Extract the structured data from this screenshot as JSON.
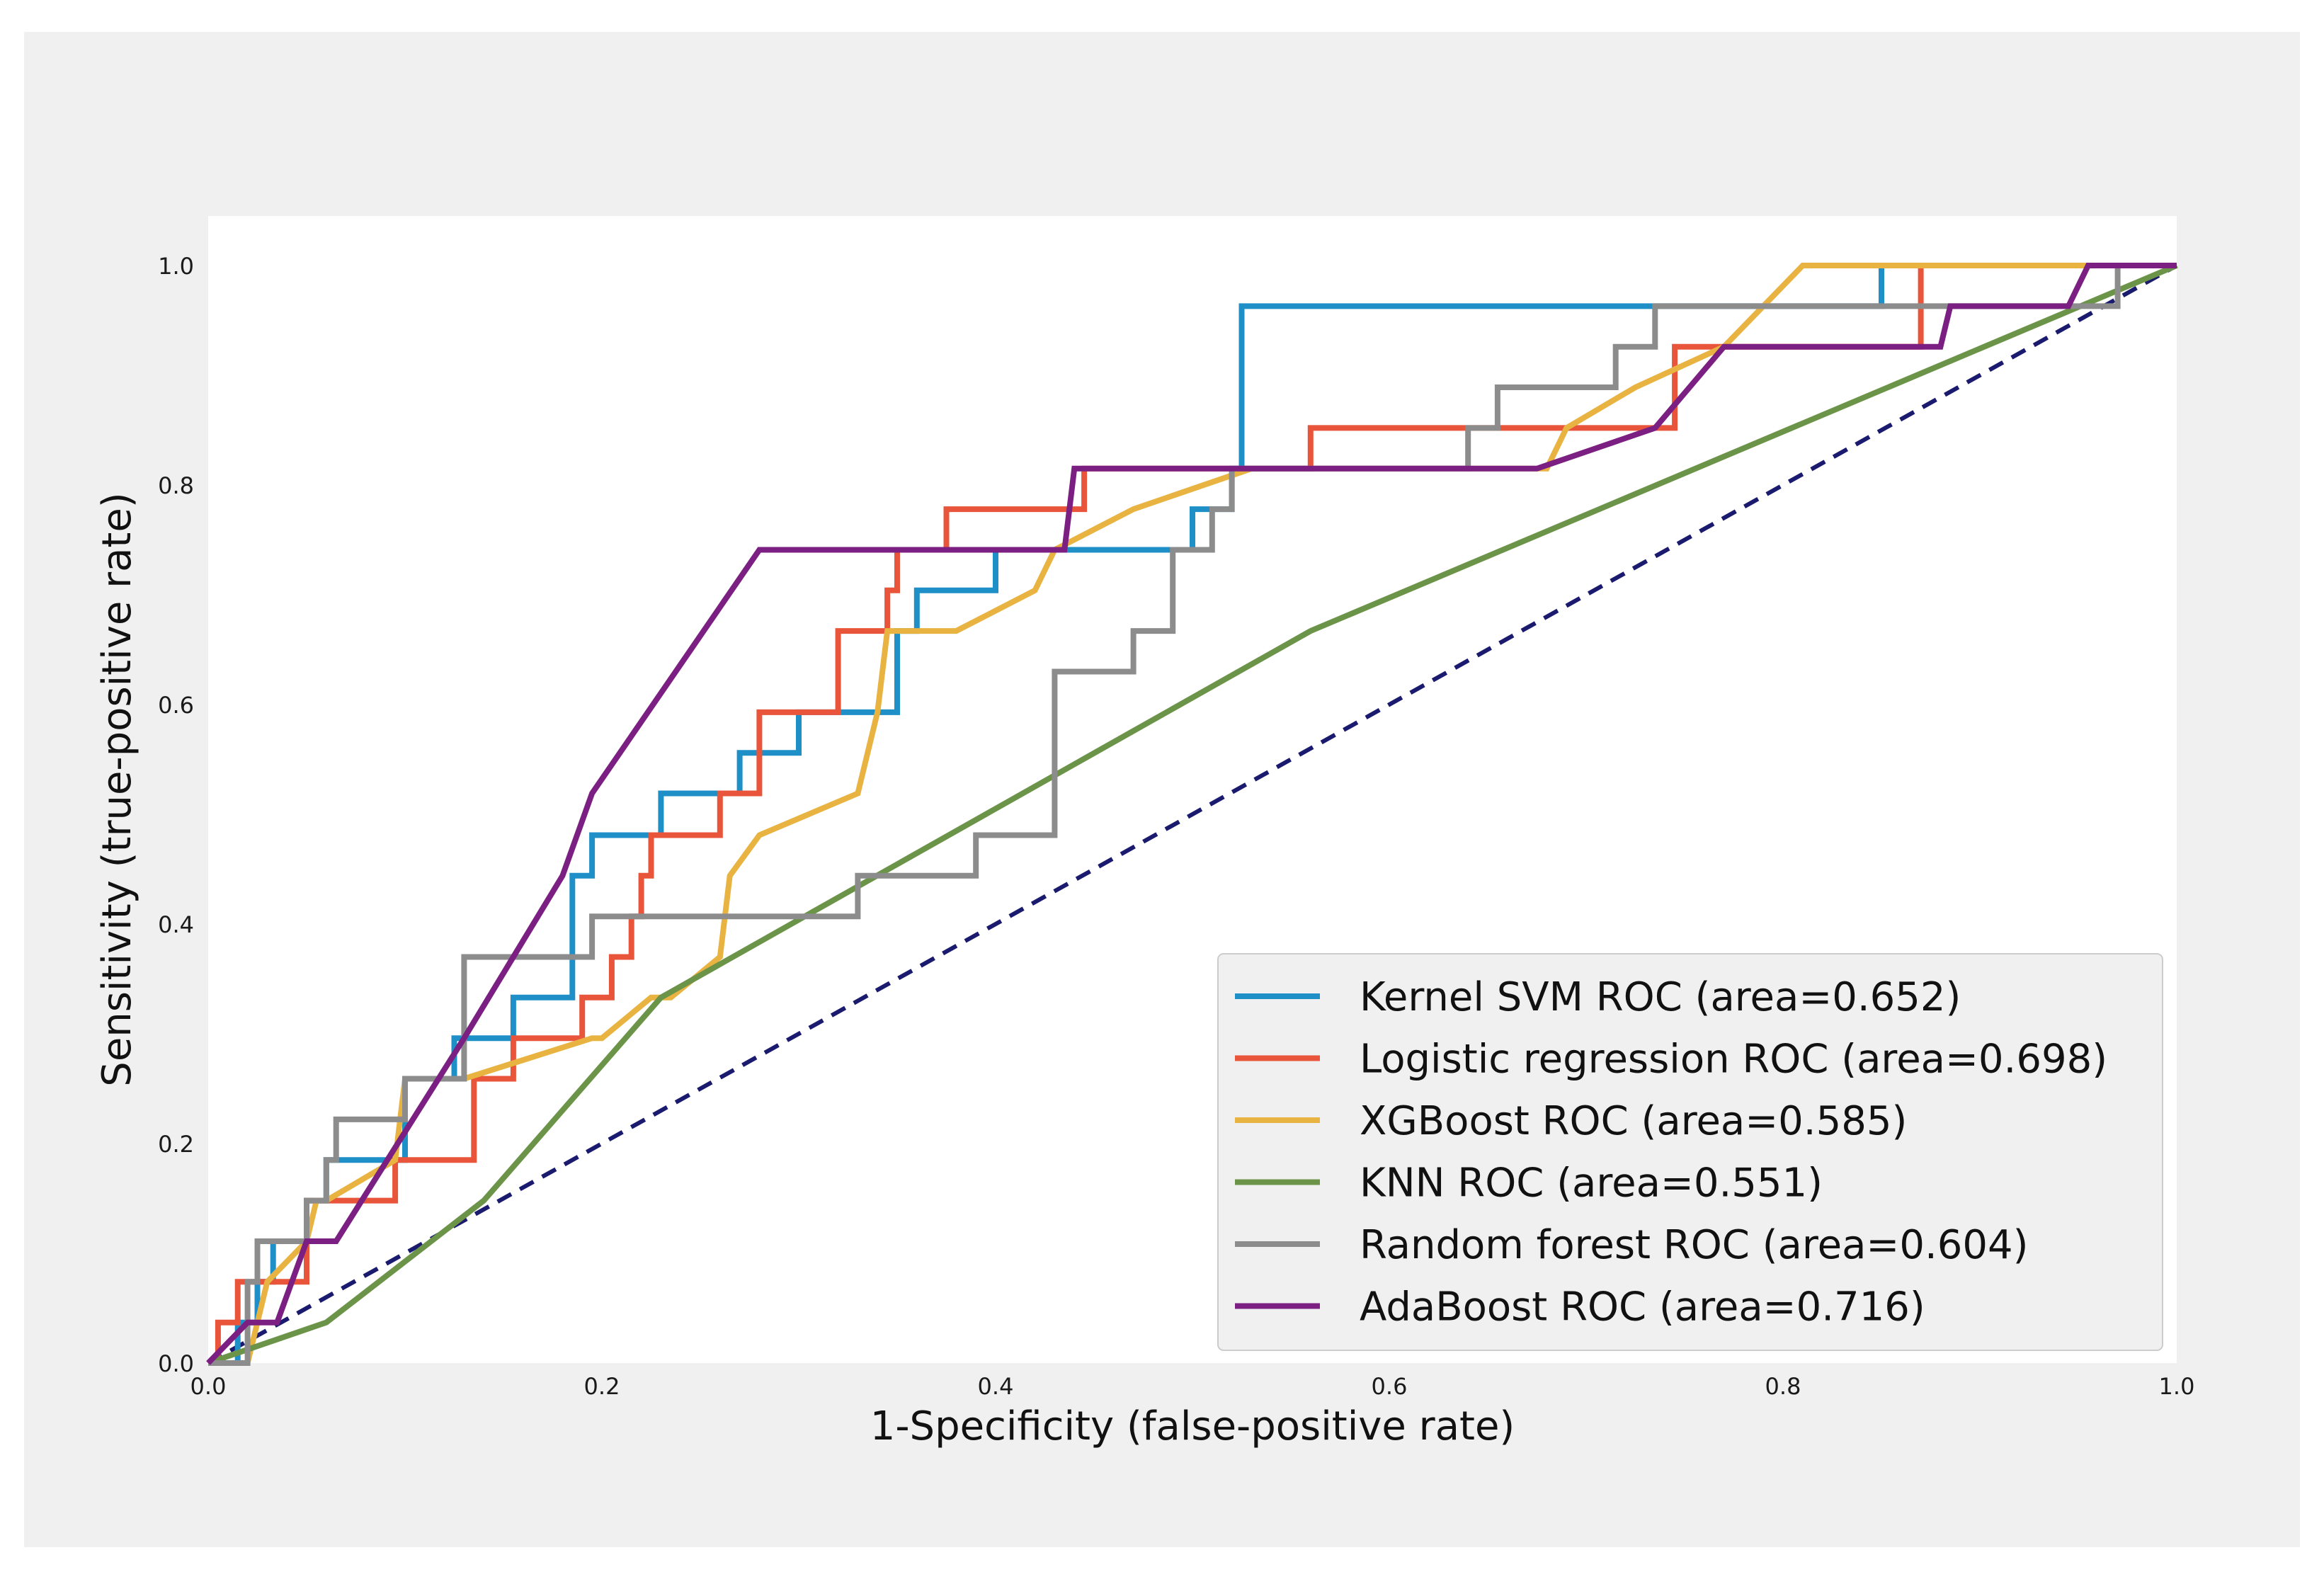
{
  "chart_data": {
    "type": "line",
    "title": "",
    "xlabel": "1-Specificity (false-positive rate)",
    "ylabel": "Sensitivity (true-positive rate)",
    "xlim": [
      0.0,
      1.0
    ],
    "ylim": [
      0.0,
      1.0
    ],
    "xticks": [
      0.0,
      0.2,
      0.4,
      0.6,
      0.8,
      1.0
    ],
    "yticks": [
      0.0,
      0.2,
      0.4,
      0.6,
      0.8,
      1.0
    ],
    "xtick_labels": [
      "0.0",
      "0.2",
      "0.4",
      "0.6",
      "0.8",
      "1.0"
    ],
    "ytick_labels": [
      "0.0",
      "0.2",
      "0.4",
      "0.6",
      "0.8",
      "1.0"
    ],
    "grid": false,
    "legend_position": "lower-right",
    "chance_line": {
      "name": "chance",
      "color": "#1a1a6e",
      "style": "dashed",
      "x": [
        0,
        1
      ],
      "y": [
        0,
        1
      ]
    },
    "series": [
      {
        "name": "Kernel SVM ROC (area=0.652)",
        "color": "#1f8fc8",
        "x": [
          0,
          0.015,
          0.015,
          0.025,
          0.025,
          0.033,
          0.033,
          0.05,
          0.05,
          0.06,
          0.06,
          0.1,
          0.1,
          0.125,
          0.125,
          0.155,
          0.155,
          0.185,
          0.185,
          0.195,
          0.195,
          0.23,
          0.23,
          0.27,
          0.27,
          0.3,
          0.3,
          0.35,
          0.35,
          0.36,
          0.36,
          0.4,
          0.4,
          0.5,
          0.5,
          0.52,
          0.52,
          0.525,
          0.525,
          0.85,
          0.85,
          1.0
        ],
        "y": [
          0,
          0,
          0.037,
          0.037,
          0.074,
          0.074,
          0.111,
          0.111,
          0.148,
          0.148,
          0.185,
          0.185,
          0.259,
          0.259,
          0.296,
          0.296,
          0.333,
          0.333,
          0.444,
          0.444,
          0.481,
          0.481,
          0.519,
          0.519,
          0.556,
          0.556,
          0.593,
          0.593,
          0.667,
          0.667,
          0.704,
          0.704,
          0.741,
          0.741,
          0.778,
          0.778,
          0.815,
          0.815,
          0.963,
          0.963,
          1.0,
          1.0
        ]
      },
      {
        "name": "Logistic regression ROC (area=0.698)",
        "color": "#e8553a",
        "x": [
          0,
          0.005,
          0.005,
          0.015,
          0.015,
          0.05,
          0.05,
          0.095,
          0.095,
          0.135,
          0.135,
          0.155,
          0.155,
          0.19,
          0.19,
          0.205,
          0.205,
          0.215,
          0.215,
          0.22,
          0.22,
          0.225,
          0.225,
          0.26,
          0.26,
          0.28,
          0.28,
          0.32,
          0.32,
          0.345,
          0.345,
          0.35,
          0.35,
          0.375,
          0.375,
          0.445,
          0.445,
          0.56,
          0.56,
          0.745,
          0.745,
          0.87,
          0.87,
          1.0
        ],
        "y": [
          0,
          0,
          0.037,
          0.037,
          0.074,
          0.074,
          0.148,
          0.148,
          0.185,
          0.185,
          0.259,
          0.259,
          0.296,
          0.296,
          0.333,
          0.333,
          0.37,
          0.37,
          0.407,
          0.407,
          0.444,
          0.444,
          0.481,
          0.481,
          0.519,
          0.519,
          0.593,
          0.593,
          0.667,
          0.667,
          0.704,
          0.704,
          0.741,
          0.741,
          0.778,
          0.778,
          0.815,
          0.815,
          0.852,
          0.852,
          0.926,
          0.926,
          1.0,
          1.0
        ]
      },
      {
        "name": "XGBoost ROC (area=0.585)",
        "color": "#e8b341",
        "x": [
          0,
          0.02,
          0.025,
          0.03,
          0.05,
          0.055,
          0.06,
          0.095,
          0.1,
          0.13,
          0.195,
          0.2,
          0.225,
          0.235,
          0.26,
          0.265,
          0.28,
          0.33,
          0.335,
          0.34,
          0.345,
          0.38,
          0.42,
          0.43,
          0.47,
          0.53,
          0.68,
          0.69,
          0.725,
          0.77,
          0.81,
          0.96,
          1.0
        ],
        "y": [
          0,
          0,
          0.037,
          0.074,
          0.111,
          0.148,
          0.148,
          0.185,
          0.259,
          0.259,
          0.296,
          0.296,
          0.333,
          0.333,
          0.37,
          0.444,
          0.481,
          0.519,
          0.556,
          0.593,
          0.667,
          0.667,
          0.704,
          0.741,
          0.778,
          0.815,
          0.815,
          0.852,
          0.889,
          0.926,
          1.0,
          1.0,
          1.0
        ]
      },
      {
        "name": "KNN ROC (area=0.551)",
        "color": "#6b9449",
        "x": [
          0,
          0.06,
          0.14,
          0.23,
          0.56,
          1.0
        ],
        "y": [
          0,
          0.037,
          0.148,
          0.333,
          0.667,
          1.0
        ]
      },
      {
        "name": "Random forest ROC (area=0.604)",
        "color": "#8c8c8c",
        "x": [
          0,
          0.02,
          0.02,
          0.025,
          0.025,
          0.05,
          0.05,
          0.06,
          0.06,
          0.065,
          0.065,
          0.1,
          0.1,
          0.13,
          0.13,
          0.195,
          0.195,
          0.33,
          0.33,
          0.39,
          0.39,
          0.43,
          0.43,
          0.47,
          0.47,
          0.49,
          0.49,
          0.51,
          0.51,
          0.52,
          0.52,
          0.52,
          0.52,
          0.64,
          0.64,
          0.655,
          0.655,
          0.715,
          0.715,
          0.735,
          0.735,
          0.97,
          0.97,
          1.0
        ],
        "y": [
          0,
          0,
          0.074,
          0.074,
          0.111,
          0.111,
          0.148,
          0.148,
          0.185,
          0.185,
          0.222,
          0.222,
          0.259,
          0.259,
          0.37,
          0.37,
          0.407,
          0.407,
          0.444,
          0.444,
          0.481,
          0.481,
          0.63,
          0.63,
          0.667,
          0.667,
          0.741,
          0.741,
          0.778,
          0.778,
          0.815,
          0.815,
          0.815,
          0.815,
          0.852,
          0.852,
          0.889,
          0.889,
          0.926,
          0.926,
          0.963,
          0.963,
          1.0,
          1.0
        ]
      },
      {
        "name": "AdaBoost ROC (area=0.716)",
        "color": "#7b1f82",
        "x": [
          0,
          0.02,
          0.035,
          0.05,
          0.065,
          0.13,
          0.18,
          0.195,
          0.28,
          0.435,
          0.44,
          0.675,
          0.735,
          0.77,
          0.88,
          0.885,
          0.945,
          0.955,
          1.0
        ],
        "y": [
          0,
          0.037,
          0.037,
          0.111,
          0.111,
          0.296,
          0.444,
          0.519,
          0.741,
          0.741,
          0.815,
          0.815,
          0.852,
          0.926,
          0.926,
          0.963,
          0.963,
          1.0,
          1.0
        ]
      }
    ]
  }
}
